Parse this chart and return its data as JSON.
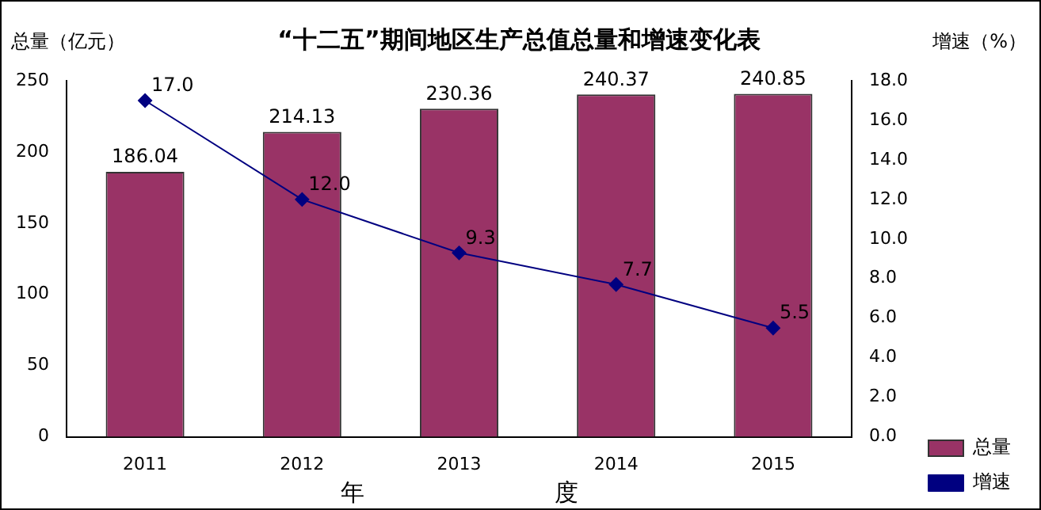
{
  "chart_data": {
    "type": "bar",
    "title": "“十二五”期间地区生产总值总量和增速变化表",
    "xlabel": "年　　　　　　　　度",
    "ylabel": "总量（亿元）",
    "y2label": "增速（%）",
    "categories": [
      "2011",
      "2012",
      "2013",
      "2014",
      "2015"
    ],
    "series": [
      {
        "name": "总量",
        "color": "#993366",
        "values": [
          186.04,
          214.13,
          230.36,
          240.37,
          240.85
        ],
        "value_labels": [
          "186.04",
          "214.13",
          "230.36",
          "240.37",
          "240.85"
        ]
      },
      {
        "name": "增速",
        "type": "line",
        "axis": "y2",
        "color": "#000080",
        "values": [
          17.0,
          12.0,
          9.3,
          7.7,
          5.5
        ],
        "value_labels": [
          "17.0",
          "12.0",
          "9.3",
          "7.7",
          "5.5"
        ]
      }
    ],
    "ylim": [
      0,
      250
    ],
    "yticks": [
      0,
      50,
      100,
      150,
      200,
      250
    ],
    "y2lim": [
      0,
      18
    ],
    "y2ticks": [
      {
        "value": 0,
        "label": "0.0"
      },
      {
        "value": 2,
        "label": "2.0"
      },
      {
        "value": 4,
        "label": "4.0"
      },
      {
        "value": 6,
        "label": "6.0"
      },
      {
        "value": 8,
        "label": "8.0"
      },
      {
        "value": 10,
        "label": "10.0"
      },
      {
        "value": 12,
        "label": "12.0"
      },
      {
        "value": 14,
        "label": "14.0"
      },
      {
        "value": 16,
        "label": "16.0"
      },
      {
        "value": 18,
        "label": "18.0"
      }
    ],
    "grid": false,
    "legend": "bottom right",
    "marker": "diamond",
    "line_style": "solid"
  }
}
